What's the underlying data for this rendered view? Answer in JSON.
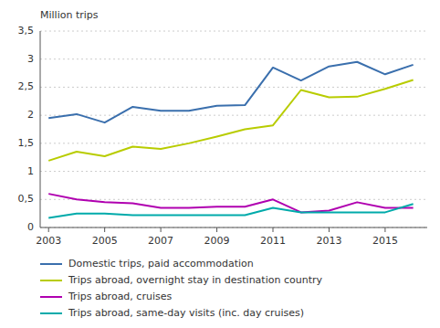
{
  "chart_data": {
    "type": "line",
    "y_label": "Million trips",
    "x": [
      2003,
      2004,
      2005,
      2006,
      2007,
      2008,
      2009,
      2010,
      2011,
      2012,
      2013,
      2014,
      2015,
      2016
    ],
    "series": [
      {
        "name": "Domestic trips, paid accommodation",
        "color": "#3a6fad",
        "values": [
          1.95,
          2.02,
          1.87,
          2.15,
          2.08,
          2.08,
          2.17,
          2.18,
          2.85,
          2.62,
          2.87,
          2.95,
          2.73,
          2.9
        ]
      },
      {
        "name": "Trips abroad, overnight stay in destination country",
        "color": "#b8cc00",
        "values": [
          1.19,
          1.35,
          1.27,
          1.44,
          1.4,
          1.5,
          1.62,
          1.75,
          1.82,
          2.45,
          2.32,
          2.33,
          2.47,
          2.63
        ]
      },
      {
        "name": "Trips abroad, cruises",
        "color": "#b000b0",
        "values": [
          0.6,
          0.5,
          0.45,
          0.43,
          0.35,
          0.35,
          0.37,
          0.37,
          0.5,
          0.27,
          0.3,
          0.45,
          0.35,
          0.35
        ]
      },
      {
        "name": "Trips abroad, same-day visits (inc. day cruises)",
        "color": "#00aaaa",
        "values": [
          0.17,
          0.25,
          0.25,
          0.22,
          0.22,
          0.22,
          0.22,
          0.22,
          0.35,
          0.27,
          0.27,
          0.27,
          0.27,
          0.42
        ]
      }
    ],
    "xlim": [
      2002.7,
      2016.5
    ],
    "xticks": [
      2003,
      2005,
      2007,
      2009,
      2011,
      2013,
      2015
    ],
    "ylim": [
      0,
      3.5
    ],
    "yticks": [
      0,
      {
        "value": 0.5,
        "label": "0,5"
      },
      1,
      {
        "value": 1.5,
        "label": "1,5"
      },
      2,
      {
        "value": 2.5,
        "label": "2,5"
      },
      3,
      {
        "value": 3.5,
        "label": "3,5"
      }
    ],
    "grid": true,
    "legend": "bottom"
  }
}
